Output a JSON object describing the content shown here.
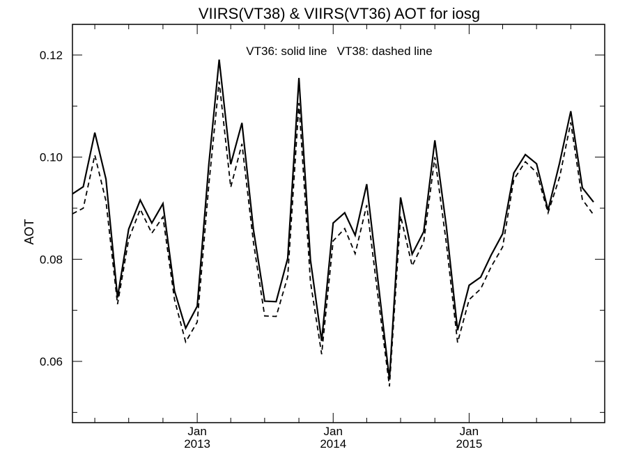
{
  "chart_data": {
    "type": "line",
    "title": "VIIRS(VT38) & VIIRS(VT36)  AOT for iosg",
    "annotation": "VT36: solid line   VT38: dashed line",
    "xlabel": "",
    "ylabel": "AOT",
    "ylim": [
      0.048,
      0.126
    ],
    "yticks": [
      0.06,
      0.08,
      0.1,
      0.12
    ],
    "ytick_labels": [
      "0.06",
      "0.08",
      "0.10",
      "0.12"
    ],
    "xlim": [
      "2012-02-01",
      "2015-12-31"
    ],
    "xticks": [
      {
        "date": "2013-01-01",
        "month": "Jan",
        "year": "2013"
      },
      {
        "date": "2014-01-01",
        "month": "Jan",
        "year": "2014"
      },
      {
        "date": "2015-01-01",
        "month": "Jan",
        "year": "2015"
      }
    ],
    "grid": false,
    "x": [
      "2012-02-01",
      "2012-03-01",
      "2012-04-01",
      "2012-05-01",
      "2012-06-01",
      "2012-07-01",
      "2012-08-01",
      "2012-09-01",
      "2012-10-01",
      "2012-11-01",
      "2012-12-01",
      "2013-01-01",
      "2013-02-01",
      "2013-03-01",
      "2013-04-01",
      "2013-05-01",
      "2013-06-01",
      "2013-07-01",
      "2013-08-01",
      "2013-09-01",
      "2013-10-01",
      "2013-11-01",
      "2013-12-01",
      "2014-01-01",
      "2014-02-01",
      "2014-03-01",
      "2014-04-01",
      "2014-05-01",
      "2014-06-01",
      "2014-07-01",
      "2014-08-01",
      "2014-09-01",
      "2014-10-01",
      "2014-11-01",
      "2014-12-01",
      "2015-01-01",
      "2015-02-01",
      "2015-03-01",
      "2015-04-01",
      "2015-05-01",
      "2015-06-01",
      "2015-07-01",
      "2015-08-01",
      "2015-09-01",
      "2015-10-01",
      "2015-11-01",
      "2015-12-01"
    ],
    "series": [
      {
        "name": "VT36",
        "style": "solid",
        "color": "#000000",
        "values": [
          0.0928,
          0.0942,
          0.1048,
          0.0957,
          0.0725,
          0.0859,
          0.0916,
          0.0871,
          0.0909,
          0.0738,
          0.0665,
          0.0708,
          0.0985,
          0.1191,
          0.0986,
          0.1067,
          0.0858,
          0.0718,
          0.0717,
          0.0802,
          0.1155,
          0.0799,
          0.064,
          0.0871,
          0.0891,
          0.0847,
          0.0947,
          0.076,
          0.0565,
          0.0921,
          0.081,
          0.0854,
          0.1033,
          0.0863,
          0.0661,
          0.0749,
          0.0765,
          0.0808,
          0.085,
          0.0969,
          0.1005,
          0.0987,
          0.0896,
          0.0989,
          0.109,
          0.094,
          0.0912
        ]
      },
      {
        "name": "VT38",
        "style": "dashed",
        "color": "#000000",
        "values": [
          0.0889,
          0.09,
          0.1004,
          0.0914,
          0.0712,
          0.0839,
          0.0898,
          0.0851,
          0.0883,
          0.0721,
          0.0638,
          0.0677,
          0.0945,
          0.1148,
          0.0941,
          0.1026,
          0.0833,
          0.0689,
          0.0688,
          0.0766,
          0.1106,
          0.0756,
          0.0614,
          0.0836,
          0.086,
          0.0811,
          0.0906,
          0.0729,
          0.0551,
          0.0885,
          0.0787,
          0.0834,
          0.1,
          0.083,
          0.0637,
          0.0721,
          0.0742,
          0.0785,
          0.0824,
          0.0956,
          0.0991,
          0.097,
          0.0891,
          0.0961,
          0.1068,
          0.0917,
          0.0887
        ]
      }
    ]
  }
}
